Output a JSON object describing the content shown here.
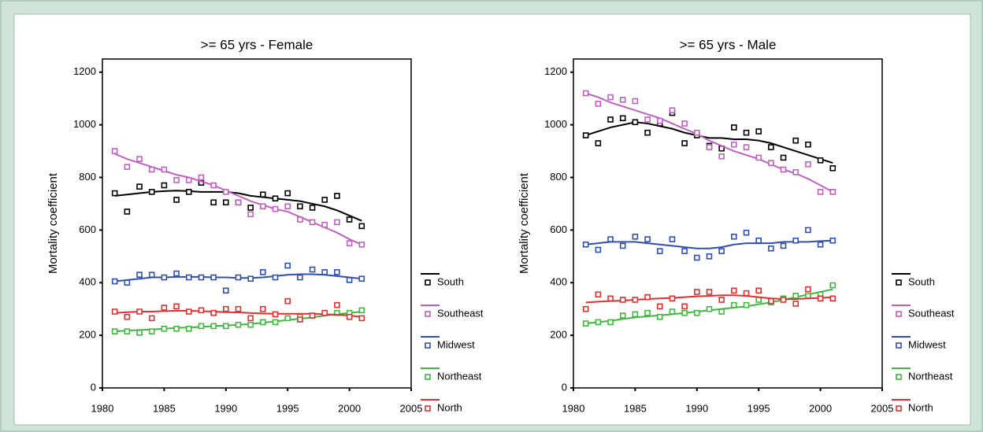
{
  "chart_data": [
    {
      "type": "scatter",
      "title": ">= 65 yrs - Female",
      "ylabel": "Mortality coefficient",
      "x": [
        1981,
        1982,
        1983,
        1984,
        1985,
        1986,
        1987,
        1988,
        1989,
        1990,
        1991,
        1992,
        1993,
        1994,
        1995,
        1996,
        1997,
        1998,
        1999,
        2000,
        2001
      ],
      "xlim": [
        1980,
        2005
      ],
      "xticks": [
        1980,
        1985,
        1990,
        1995,
        2000,
        2005
      ],
      "ylim": [
        0,
        1250
      ],
      "yticks": [
        0,
        200,
        400,
        600,
        800,
        1000,
        1200
      ],
      "series": [
        {
          "name": "South",
          "color": "#000000",
          "values": [
            740,
            670,
            765,
            745,
            770,
            715,
            745,
            780,
            705,
            705,
            705,
            685,
            735,
            720,
            740,
            690,
            685,
            715,
            730,
            640,
            615
          ],
          "trend": [
            730,
            735,
            740,
            745,
            748,
            750,
            748,
            745,
            745,
            745,
            740,
            730,
            725,
            720,
            715,
            710,
            700,
            690,
            675,
            655,
            635
          ]
        },
        {
          "name": "Southeast",
          "color": "#c060c0",
          "values": [
            900,
            840,
            870,
            830,
            830,
            790,
            790,
            800,
            770,
            745,
            705,
            660,
            690,
            680,
            690,
            640,
            630,
            620,
            630,
            550,
            545
          ],
          "trend": [
            890,
            870,
            855,
            840,
            825,
            810,
            800,
            785,
            770,
            750,
            730,
            710,
            695,
            680,
            670,
            650,
            630,
            610,
            590,
            565,
            545
          ]
        },
        {
          "name": "Midwest",
          "color": "#3050b0",
          "values": [
            405,
            400,
            430,
            430,
            420,
            435,
            420,
            420,
            420,
            370,
            420,
            415,
            440,
            420,
            465,
            420,
            450,
            440,
            440,
            410,
            415
          ],
          "trend": [
            405,
            410,
            415,
            420,
            420,
            422,
            422,
            422,
            420,
            420,
            418,
            418,
            420,
            425,
            430,
            432,
            432,
            430,
            425,
            420,
            415
          ]
        },
        {
          "name": "Northeast",
          "color": "#40b840",
          "values": [
            215,
            215,
            210,
            215,
            225,
            225,
            225,
            235,
            235,
            235,
            240,
            240,
            250,
            250,
            265,
            270,
            275,
            285,
            285,
            285,
            295
          ],
          "trend": [
            215,
            218,
            220,
            222,
            225,
            228,
            230,
            232,
            235,
            237,
            240,
            243,
            248,
            253,
            258,
            263,
            268,
            275,
            280,
            285,
            290
          ]
        },
        {
          "name": "North",
          "color": "#e03030",
          "values": [
            290,
            270,
            290,
            265,
            305,
            310,
            290,
            295,
            285,
            300,
            300,
            265,
            300,
            280,
            330,
            260,
            275,
            285,
            315,
            270,
            265
          ],
          "trend": [
            285,
            288,
            290,
            290,
            292,
            293,
            293,
            292,
            290,
            288,
            287,
            285,
            283,
            282,
            282,
            282,
            282,
            280,
            278,
            275,
            270
          ]
        }
      ]
    },
    {
      "type": "scatter",
      "title": ">= 65 yrs - Male",
      "ylabel": "Mortality coefficient",
      "x": [
        1981,
        1982,
        1983,
        1984,
        1985,
        1986,
        1987,
        1988,
        1989,
        1990,
        1991,
        1992,
        1993,
        1994,
        1995,
        1996,
        1997,
        1998,
        1999,
        2000,
        2001
      ],
      "xlim": [
        1980,
        2005
      ],
      "xticks": [
        1980,
        1985,
        1990,
        1995,
        2000,
        2005
      ],
      "ylim": [
        0,
        1250
      ],
      "yticks": [
        0,
        200,
        400,
        600,
        800,
        1000,
        1200
      ],
      "series": [
        {
          "name": "South",
          "color": "#000000",
          "values": [
            960,
            930,
            1020,
            1025,
            1010,
            970,
            1005,
            1045,
            930,
            960,
            920,
            910,
            990,
            970,
            975,
            915,
            875,
            940,
            925,
            865,
            835
          ],
          "trend": [
            960,
            975,
            990,
            1000,
            1010,
            1005,
            995,
            985,
            970,
            960,
            950,
            950,
            945,
            945,
            940,
            930,
            915,
            900,
            885,
            870,
            855
          ]
        },
        {
          "name": "Southeast",
          "color": "#c060c0",
          "values": [
            1120,
            1080,
            1105,
            1095,
            1090,
            1020,
            1015,
            1055,
            1005,
            970,
            915,
            880,
            925,
            915,
            875,
            855,
            830,
            820,
            850,
            745,
            745
          ],
          "trend": [
            1120,
            1105,
            1085,
            1070,
            1055,
            1040,
            1025,
            1005,
            985,
            965,
            940,
            920,
            900,
            885,
            870,
            850,
            830,
            815,
            795,
            770,
            745
          ]
        },
        {
          "name": "Midwest",
          "color": "#3050b0",
          "values": [
            545,
            525,
            565,
            540,
            575,
            565,
            520,
            565,
            520,
            495,
            500,
            520,
            575,
            590,
            560,
            530,
            540,
            560,
            600,
            545,
            560
          ],
          "trend": [
            545,
            550,
            555,
            555,
            555,
            550,
            545,
            540,
            535,
            530,
            530,
            535,
            545,
            550,
            550,
            550,
            555,
            555,
            555,
            558,
            560
          ]
        },
        {
          "name": "Northeast",
          "color": "#40b840",
          "values": [
            245,
            250,
            250,
            275,
            280,
            285,
            270,
            290,
            285,
            285,
            300,
            290,
            315,
            315,
            335,
            325,
            340,
            350,
            350,
            355,
            390
          ],
          "trend": [
            245,
            250,
            255,
            262,
            268,
            272,
            276,
            280,
            285,
            290,
            295,
            300,
            305,
            310,
            318,
            325,
            335,
            345,
            355,
            365,
            375
          ]
        },
        {
          "name": "North",
          "color": "#e03030",
          "values": [
            300,
            355,
            340,
            335,
            335,
            345,
            310,
            340,
            310,
            365,
            365,
            335,
            370,
            360,
            370,
            330,
            335,
            320,
            375,
            340,
            340
          ],
          "trend": [
            325,
            328,
            330,
            332,
            335,
            338,
            340,
            342,
            345,
            348,
            350,
            352,
            352,
            350,
            345,
            340,
            338,
            338,
            340,
            342,
            345
          ]
        }
      ]
    }
  ]
}
